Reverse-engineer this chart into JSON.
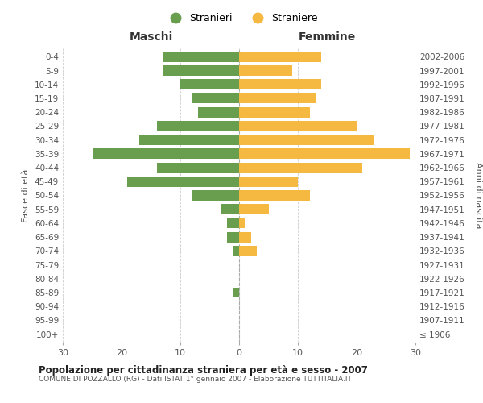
{
  "age_groups": [
    "100+",
    "95-99",
    "90-94",
    "85-89",
    "80-84",
    "75-79",
    "70-74",
    "65-69",
    "60-64",
    "55-59",
    "50-54",
    "45-49",
    "40-44",
    "35-39",
    "30-34",
    "25-29",
    "20-24",
    "15-19",
    "10-14",
    "5-9",
    "0-4"
  ],
  "birth_years": [
    "≤ 1906",
    "1907-1911",
    "1912-1916",
    "1917-1921",
    "1922-1926",
    "1927-1931",
    "1932-1936",
    "1937-1941",
    "1942-1946",
    "1947-1951",
    "1952-1956",
    "1957-1961",
    "1962-1966",
    "1967-1971",
    "1972-1976",
    "1977-1981",
    "1982-1986",
    "1987-1991",
    "1992-1996",
    "1997-2001",
    "2002-2006"
  ],
  "males": [
    0,
    0,
    0,
    1,
    0,
    0,
    1,
    2,
    2,
    3,
    8,
    19,
    14,
    25,
    17,
    14,
    7,
    8,
    10,
    13,
    13
  ],
  "females": [
    0,
    0,
    0,
    0,
    0,
    0,
    3,
    2,
    1,
    5,
    12,
    10,
    21,
    29,
    23,
    20,
    12,
    13,
    14,
    9,
    14
  ],
  "male_color": "#6a9e4f",
  "female_color": "#f5b942",
  "title": "Popolazione per cittadinanza straniera per età e sesso - 2007",
  "subtitle": "COMUNE DI POZZALLO (RG) - Dati ISTAT 1° gennaio 2007 - Elaborazione TUTTITALIA.IT",
  "xlabel_left": "Maschi",
  "xlabel_right": "Femmine",
  "ylabel_left": "Fasce di età",
  "ylabel_right": "Anni di nascita",
  "xlim": 30,
  "legend_male": "Stranieri",
  "legend_female": "Straniere",
  "background_color": "#ffffff",
  "grid_color": "#cccccc"
}
